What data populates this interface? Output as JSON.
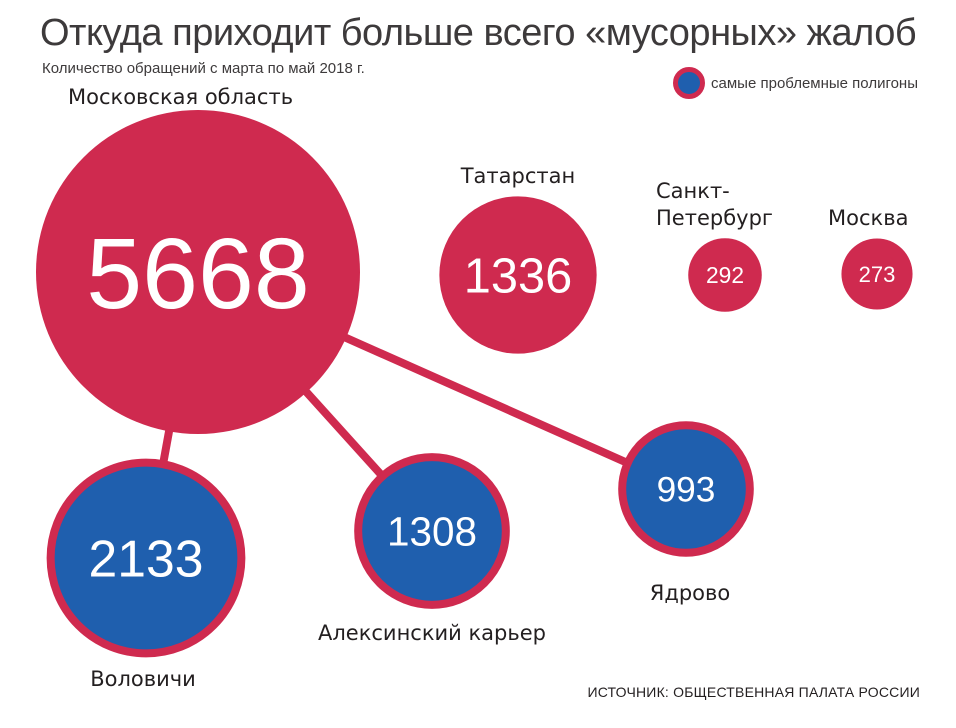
{
  "header": {
    "title": "Откуда приходит больше всего «мусорных» жалоб",
    "subtitle": "Количество обращений с марта по май 2018 г."
  },
  "legend": {
    "label": "самые проблемные полигоны"
  },
  "source": "ИСТОЧНИК: ОБЩЕСТВЕННАЯ ПАЛАТА РОССИИ",
  "colors": {
    "region": "#cf2a4f",
    "landfill": "#1f5fae",
    "connector": "#cf2a4f"
  },
  "chart_data": {
    "type": "bubble",
    "title": "Откуда приходит больше всего «мусорных» жалоб",
    "subtitle": "Количество обращений с марта по май 2018 г.",
    "regions": [
      {
        "name": "Московская область",
        "value": 5668
      },
      {
        "name": "Татарстан",
        "value": 1336
      },
      {
        "name": "Санкт-Петербург",
        "value": 292
      },
      {
        "name": "Москва",
        "value": 273
      }
    ],
    "landfills": [
      {
        "name": "Воловичи",
        "value": 2133,
        "parent": "Московская область"
      },
      {
        "name": "Алексинский карьер",
        "value": 1308,
        "parent": "Московская область"
      },
      {
        "name": "Ядрово",
        "value": 993,
        "parent": "Московская область"
      }
    ]
  }
}
